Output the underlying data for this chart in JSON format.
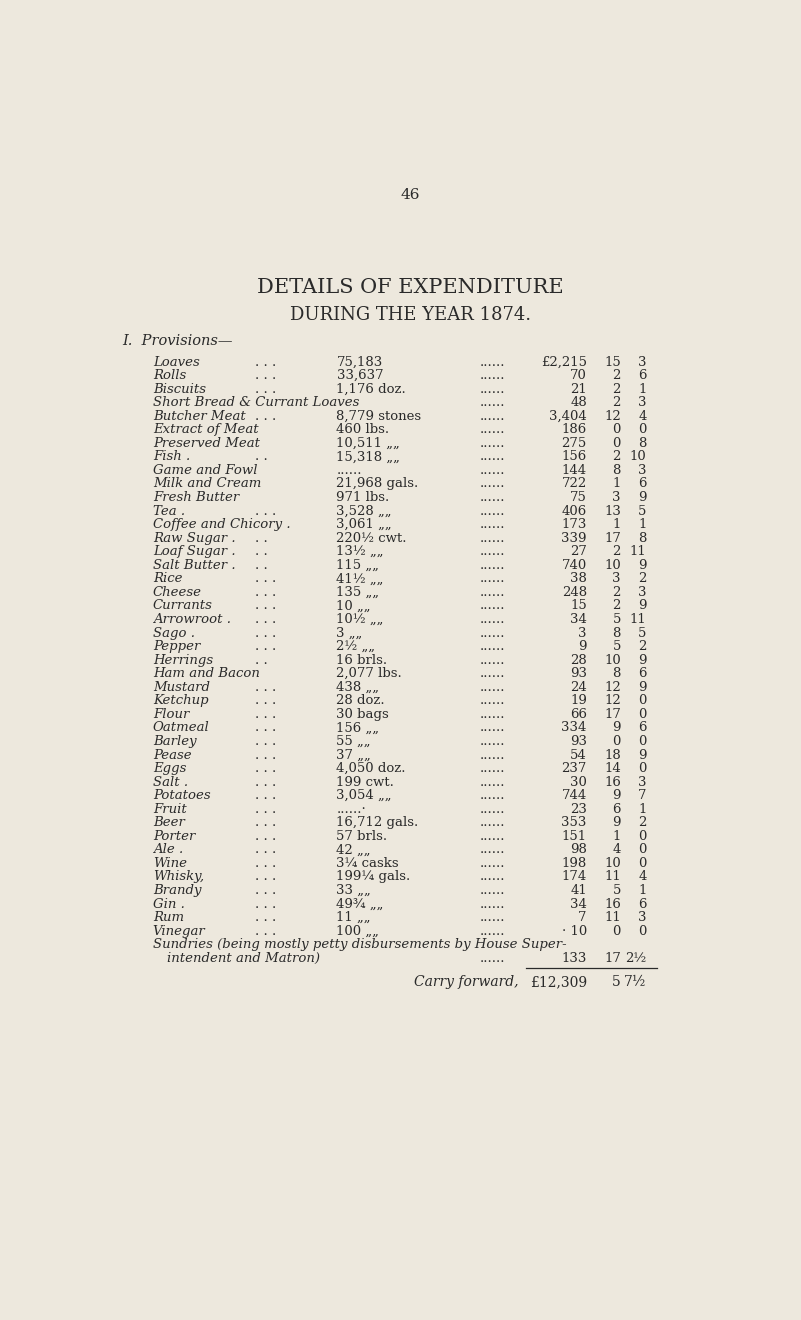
{
  "page_number": "46",
  "title1": "DETAILS OF EXPENDITURE",
  "title2": "DURING THE YEAR 1874.",
  "section": "I.  Provisions—",
  "bg_color": "#ede8dd",
  "text_color": "#2a2a2a",
  "rows": [
    {
      "item": "Loaves",
      "dots1": ". . .",
      "qty": "75,183",
      "dots2": "......",
      "pounds": "£2,215",
      "s": "15",
      "d": "3"
    },
    {
      "item": "Rolls",
      "dots1": ". . .",
      "qty": "33,637",
      "dots2": "......",
      "pounds": "70",
      "s": "2",
      "d": "6"
    },
    {
      "item": "Biscuits",
      "dots1": ". . .",
      "qty": "1,176 doz.",
      "dots2": "......",
      "pounds": "21",
      "s": "2",
      "d": "1"
    },
    {
      "item": "Short Bread & Currant Loaves",
      "dots1": "......",
      "qty": "",
      "dots2": "......",
      "pounds": "48",
      "s": "2",
      "d": "3"
    },
    {
      "item": "Butcher Meat",
      "dots1": ". . .",
      "qty": "8,779 stones",
      "dots2": "......",
      "pounds": "3,404",
      "s": "12",
      "d": "4"
    },
    {
      "item": "Extract of Meat",
      "dots1": ". .",
      "qty": "460 lbs.",
      "dots2": "......",
      "pounds": "186",
      "s": "0",
      "d": "0"
    },
    {
      "item": "Preserved Meat",
      "dots1": ". .",
      "qty": "10,511 „„",
      "dots2": "......",
      "pounds": "275",
      "s": "0",
      "d": "8"
    },
    {
      "item": "Fish .",
      "dots1": ". .",
      "qty": "15,318 „„",
      "dots2": "......",
      "pounds": "156",
      "s": "2",
      "d": "10"
    },
    {
      "item": "Game and Fowl",
      "dots1": ". .",
      "qty": "......",
      "dots2": "......",
      "pounds": "144",
      "s": "8",
      "d": "3"
    },
    {
      "item": "Milk and Cream",
      "dots1": ". .",
      "qty": "21,968 gals.",
      "dots2": "......",
      "pounds": "722",
      "s": "1",
      "d": "6"
    },
    {
      "item": "Fresh Butter",
      "dots1": ". .",
      "qty": "971 lbs.",
      "dots2": "......",
      "pounds": "75",
      "s": "3",
      "d": "9"
    },
    {
      "item": "Tea .",
      "dots1": ". . .",
      "qty": "3,528 „„",
      "dots2": "......",
      "pounds": "406",
      "s": "13",
      "d": "5"
    },
    {
      "item": "Coffee and Chicory .",
      "dots1": ". .",
      "qty": "3,061 „„",
      "dots2": "......",
      "pounds": "173",
      "s": "1",
      "d": "1"
    },
    {
      "item": "Raw Sugar .",
      "dots1": ". .",
      "qty": "220½ cwt.",
      "dots2": "......",
      "pounds": "339",
      "s": "17",
      "d": "8"
    },
    {
      "item": "Loaf Sugar .",
      "dots1": ". .",
      "qty": "13½ „„",
      "dots2": "......",
      "pounds": "27",
      "s": "2",
      "d": "11"
    },
    {
      "item": "Salt Butter .",
      "dots1": ". .",
      "qty": "115 „„",
      "dots2": "......",
      "pounds": "740",
      "s": "10",
      "d": "9"
    },
    {
      "item": "Rice",
      "dots1": ". . .",
      "qty": "41½ „„",
      "dots2": "......",
      "pounds": "38",
      "s": "3",
      "d": "2"
    },
    {
      "item": "Cheese",
      "dots1": ". . .",
      "qty": "135 „„",
      "dots2": "......",
      "pounds": "248",
      "s": "2",
      "d": "3"
    },
    {
      "item": "Currants",
      "dots1": ". . .",
      "qty": "10 „„",
      "dots2": "......",
      "pounds": "15",
      "s": "2",
      "d": "9"
    },
    {
      "item": "Arrowroot .",
      "dots1": ". . .",
      "qty": "10½ „„",
      "dots2": "......",
      "pounds": "34",
      "s": "5",
      "d": "11"
    },
    {
      "item": "Sago .",
      "dots1": ". . .",
      "qty": "3 „„",
      "dots2": "......",
      "pounds": "3",
      "s": "8",
      "d": "5"
    },
    {
      "item": "Pepper",
      "dots1": ". . .",
      "qty": "2½ „„",
      "dots2": "......",
      "pounds": "9",
      "s": "5",
      "d": "2"
    },
    {
      "item": "Herrings",
      "dots1": ". .",
      "qty": "16 brls.",
      "dots2": "......",
      "pounds": "28",
      "s": "10",
      "d": "9"
    },
    {
      "item": "Ham and Bacon",
      "dots1": ". .",
      "qty": "2,077 lbs.",
      "dots2": "......",
      "pounds": "93",
      "s": "8",
      "d": "6"
    },
    {
      "item": "Mustard",
      "dots1": ". . .",
      "qty": "438 „„",
      "dots2": "......",
      "pounds": "24",
      "s": "12",
      "d": "9"
    },
    {
      "item": "Ketchup",
      "dots1": ". . .",
      "qty": "28 doz.",
      "dots2": "......",
      "pounds": "19",
      "s": "12",
      "d": "0"
    },
    {
      "item": "Flour",
      "dots1": ". . .",
      "qty": "30 bags",
      "dots2": "......",
      "pounds": "66",
      "s": "17",
      "d": "0"
    },
    {
      "item": "Oatmeal",
      "dots1": ". . .",
      "qty": "156 „„",
      "dots2": "......",
      "pounds": "334",
      "s": "9",
      "d": "6"
    },
    {
      "item": "Barley",
      "dots1": ". . .",
      "qty": "55 „„",
      "dots2": "......",
      "pounds": "93",
      "s": "0",
      "d": "0"
    },
    {
      "item": "Pease",
      "dots1": ". . .",
      "qty": "37 „„",
      "dots2": "......",
      "pounds": "54",
      "s": "18",
      "d": "9"
    },
    {
      "item": "Eggs",
      "dots1": ". . .",
      "qty": "4,050 doz.",
      "dots2": "......",
      "pounds": "237",
      "s": "14",
      "d": "0"
    },
    {
      "item": "Salt .",
      "dots1": ". . .",
      "qty": "199 cwt.",
      "dots2": "......",
      "pounds": "30",
      "s": "16",
      "d": "3"
    },
    {
      "item": "Potatoes",
      "dots1": ". . .",
      "qty": "3,054 „„",
      "dots2": "......",
      "pounds": "744",
      "s": "9",
      "d": "7"
    },
    {
      "item": "Fruit",
      "dots1": ". . .",
      "qty": "......·",
      "dots2": "......",
      "pounds": "23",
      "s": "6",
      "d": "1"
    },
    {
      "item": "Beer",
      "dots1": ". . .",
      "qty": "16,712 gals.",
      "dots2": "......",
      "pounds": "353",
      "s": "9",
      "d": "2"
    },
    {
      "item": "Porter",
      "dots1": ". . .",
      "qty": "57 brls.",
      "dots2": "......",
      "pounds": "151",
      "s": "1",
      "d": "0"
    },
    {
      "item": "Ale .",
      "dots1": ". . .",
      "qty": "42 „„",
      "dots2": "......",
      "pounds": "98",
      "s": "4",
      "d": "0"
    },
    {
      "item": "Wine",
      "dots1": ". . .",
      "qty": "3¼ casks",
      "dots2": "......",
      "pounds": "198",
      "s": "10",
      "d": "0"
    },
    {
      "item": "Whisky,",
      "dots1": ". . .",
      "qty": "199¼ gals.",
      "dots2": "......",
      "pounds": "174",
      "s": "11",
      "d": "4"
    },
    {
      "item": "Brandy",
      "dots1": ". . .",
      "qty": "33 „„",
      "dots2": "......",
      "pounds": "41",
      "s": "5",
      "d": "1"
    },
    {
      "item": "Gin .",
      "dots1": ". . .",
      "qty": "49¾ „„",
      "dots2": "......",
      "pounds": "34",
      "s": "16",
      "d": "6"
    },
    {
      "item": "Rum",
      "dots1": ". . .",
      "qty": "11 „„",
      "dots2": "......",
      "pounds": "7",
      "s": "11",
      "d": "3"
    },
    {
      "item": "Vinegar",
      "dots1": ". . .",
      "qty": "100 „„",
      "dots2": "......",
      "pounds": "· 10",
      "s": "0",
      "d": "0"
    }
  ],
  "sundries_line1": "Sundries (being mostly petty disbursements by House Super-",
  "sundries_line2": "intendent and Matron)",
  "sundries_dots": "......",
  "sundries_pounds": "133",
  "sundries_s": "17",
  "sundries_d": "2½",
  "carry_label": "Carry forward,",
  "carry_pounds": "£12,309",
  "carry_s": "5",
  "carry_d": "7½"
}
